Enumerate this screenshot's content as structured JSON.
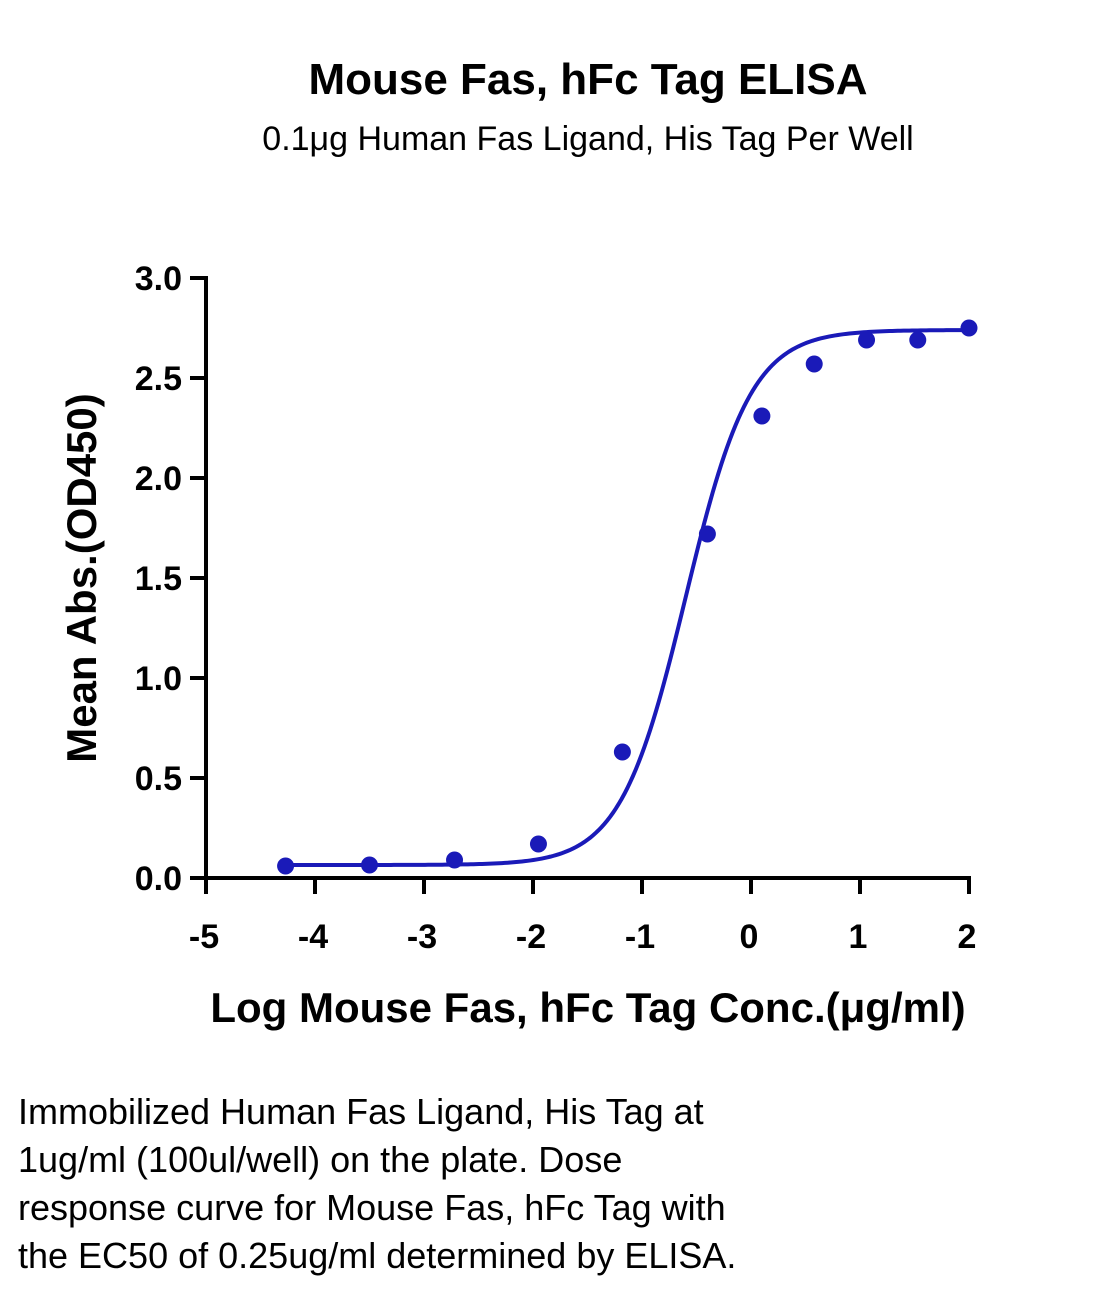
{
  "chart_data": {
    "type": "scatter",
    "title": "Mouse Fas, hFc Tag ELISA",
    "subtitle": "0.1μg Human Fas Ligand, His Tag Per Well",
    "xlabel": "Log Mouse Fas, hFc Tag Conc.(μg/ml)",
    "ylabel": "Mean Abs.(OD450)",
    "xlim": [
      -5,
      2
    ],
    "ylim": [
      0,
      3
    ],
    "x_ticks": [
      -5,
      -4,
      -3,
      -2,
      -1,
      0,
      1,
      2
    ],
    "x_tick_labels": [
      "-5",
      "-4",
      "-3",
      "-2",
      "-1",
      "0",
      "1",
      "2"
    ],
    "y_ticks": [
      0,
      0.5,
      1,
      1.5,
      2,
      2.5,
      3
    ],
    "y_tick_labels": [
      "0.0",
      "0.5",
      "1.0",
      "1.5",
      "2.0",
      "2.5",
      "3.0"
    ],
    "grid": false,
    "series": [
      {
        "color": "#1a1ab8",
        "x": [
          -4.27,
          -3.5,
          -2.72,
          -1.95,
          -1.18,
          -0.4,
          0.1,
          0.58,
          1.06,
          1.53,
          2.0
        ],
        "y": [
          0.06,
          0.065,
          0.09,
          0.17,
          0.63,
          1.72,
          2.31,
          2.57,
          2.69,
          2.69,
          2.75
        ]
      }
    ],
    "fit": {
      "model": "4PL",
      "bottom": 0.065,
      "top": 2.74,
      "logEC50": -0.6,
      "hill": 1.45
    }
  },
  "caption": {
    "lines": [
      "Immobilized Human Fas Ligand, His Tag at",
      "1ug/ml (100ul/well) on the plate. Dose",
      "response curve for Mouse Fas, hFc Tag with",
      "the EC50 of 0.25ug/ml determined by ELISA."
    ]
  }
}
